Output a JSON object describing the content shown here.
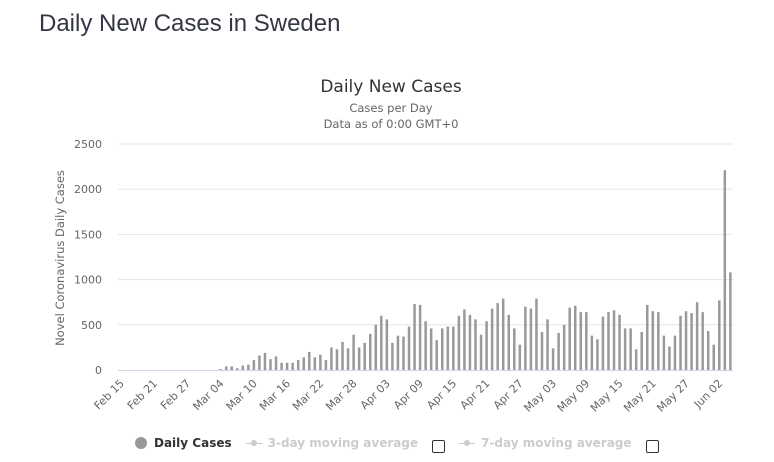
{
  "page": {
    "title": "Daily New Cases in Sweden"
  },
  "legend": {
    "items": [
      {
        "label": "Daily Cases",
        "active": true
      },
      {
        "label": "3-day moving average",
        "active": false
      },
      {
        "label": "7-day moving average",
        "active": false
      }
    ]
  },
  "colors": {
    "bar": "#999999",
    "grid": "#e6e6e6",
    "axis": "#ccd6eb",
    "title": "#333645"
  },
  "chart_data": {
    "type": "bar",
    "title": "Daily New Cases",
    "subtitle": "Cases per Day",
    "subtitle2": "Data as of 0:00 GMT+0",
    "xlabel": "",
    "ylabel": "Novel Coronavirus Daily Cases",
    "ylim": [
      0,
      2500
    ],
    "yticks": [
      0,
      500,
      1000,
      1500,
      2000,
      2500
    ],
    "grid": true,
    "legend_position": "bottom",
    "start_date": "Feb 15",
    "xtick_labels": [
      "Feb 15",
      "Feb 21",
      "Feb 27",
      "Mar 04",
      "Mar 10",
      "Mar 16",
      "Mar 22",
      "Mar 28",
      "Apr 03",
      "Apr 09",
      "Apr 15",
      "Apr 21",
      "Apr 27",
      "May 03",
      "May 09",
      "May 15",
      "May 21",
      "May 27",
      "Jun 02"
    ],
    "xtick_step_days": 6,
    "series": [
      {
        "name": "Daily Cases",
        "values": [
          0,
          0,
          0,
          0,
          0,
          0,
          0,
          0,
          0,
          0,
          0,
          0,
          0,
          0,
          0,
          0,
          0,
          0,
          10,
          40,
          40,
          20,
          50,
          60,
          110,
          160,
          190,
          120,
          150,
          80,
          80,
          80,
          110,
          140,
          200,
          140,
          170,
          110,
          250,
          230,
          310,
          240,
          390,
          250,
          300,
          400,
          500,
          600,
          560,
          300,
          380,
          370,
          480,
          730,
          720,
          540,
          460,
          330,
          460,
          480,
          480,
          600,
          670,
          610,
          560,
          390,
          540,
          680,
          740,
          790,
          610,
          460,
          280,
          700,
          680,
          790,
          420,
          560,
          240,
          410,
          500,
          690,
          710,
          640,
          640,
          380,
          340,
          590,
          640,
          660,
          610,
          460,
          460,
          230,
          420,
          720,
          650,
          640,
          380,
          260,
          380,
          600,
          650,
          630,
          750,
          640,
          430,
          280,
          770,
          2210,
          1080
        ]
      }
    ]
  }
}
